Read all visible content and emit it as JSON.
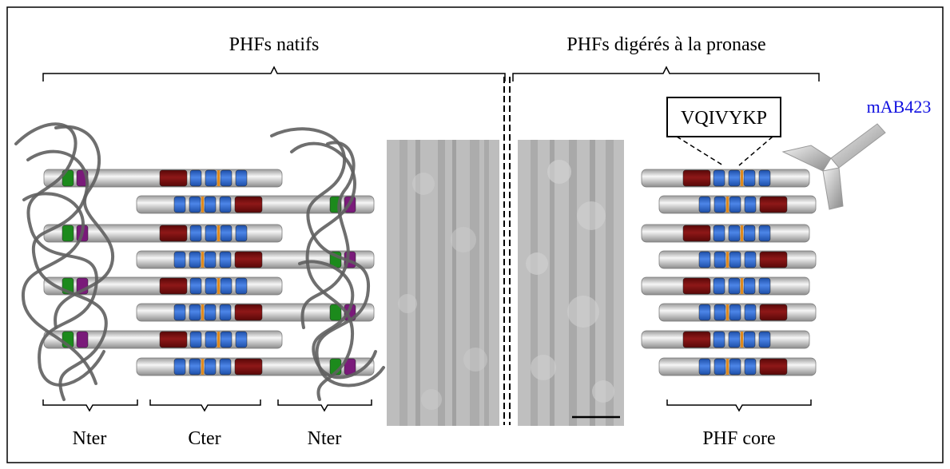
{
  "labels": {
    "native_title": "PHFs natifs",
    "digested_title": "PHFs digérés à la pronase",
    "peptide": "VQIVYKP",
    "antibody": "mAB423",
    "nter_left": "Nter",
    "cter": "Cter",
    "nter_right": "Nter",
    "core": "PHF core"
  },
  "colors": {
    "border": "#000000",
    "bar_light": "#f4f4f4",
    "bar_dark": "#8c8c8c",
    "repeat_blue": "#3b73d6",
    "repeat_red": "#7d0f0f",
    "n_green": "#1c8a1c",
    "n_purple": "#7a1a7a",
    "linker_orange": "#e08a1e",
    "coil": "#5f5f5f",
    "antibody_text": "#1010e0",
    "em_background": "#bdbdbd"
  }
}
